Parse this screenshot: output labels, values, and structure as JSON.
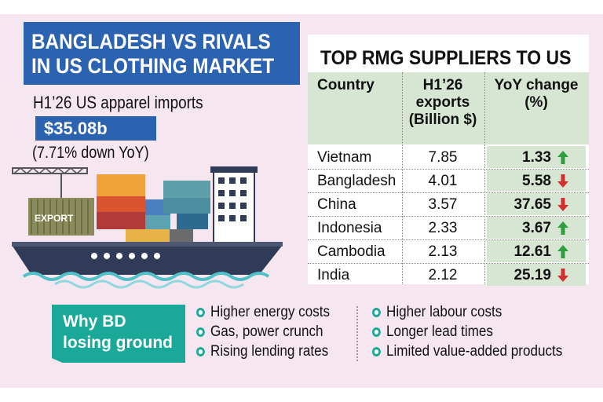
{
  "title": {
    "line1": "BANGLADESH VS RIVALS",
    "line2": "IN US CLOTHING MARKET"
  },
  "imports": {
    "label": "H1’26 US apparel imports",
    "amount": "$35.08b",
    "change": "(7.71% down YoY)"
  },
  "ship": {
    "container_label": "EXPORT"
  },
  "table": {
    "title": "TOP RMG SUPPLIERS TO US",
    "headers": {
      "country": "Country",
      "exports": [
        "H1’26",
        "exports",
        "(Billion $)"
      ],
      "change": [
        "YoY change",
        "(%)"
      ]
    },
    "rows": [
      {
        "country": "Vietnam",
        "exports": "7.85",
        "change": "1.33",
        "direction": "up"
      },
      {
        "country": "Bangladesh",
        "exports": "4.01",
        "change": "5.58",
        "direction": "down"
      },
      {
        "country": "China",
        "exports": "3.57",
        "change": "37.65",
        "direction": "down"
      },
      {
        "country": "Indonesia",
        "exports": "2.33",
        "change": "3.67",
        "direction": "up"
      },
      {
        "country": "Cambodia",
        "exports": "2.13",
        "change": "12.61",
        "direction": "up"
      },
      {
        "country": "India",
        "exports": "2.12",
        "change": "25.19",
        "direction": "down"
      }
    ]
  },
  "why": {
    "label_line1": "Why BD",
    "label_line2": "losing ground",
    "reasons_left": [
      "Higher energy costs",
      "Gas, power crunch",
      "Rising lending rates"
    ],
    "reasons_right": [
      "Higher labour costs",
      "Longer lead times",
      "Limited value-added products"
    ]
  },
  "colors": {
    "blue": "#2c63b1",
    "teal": "#1aa899",
    "green_header": "#d7e6d3",
    "up_arrow": "#2e9e3f",
    "down_arrow": "#d32f2f",
    "background": "#f5e6ef"
  }
}
